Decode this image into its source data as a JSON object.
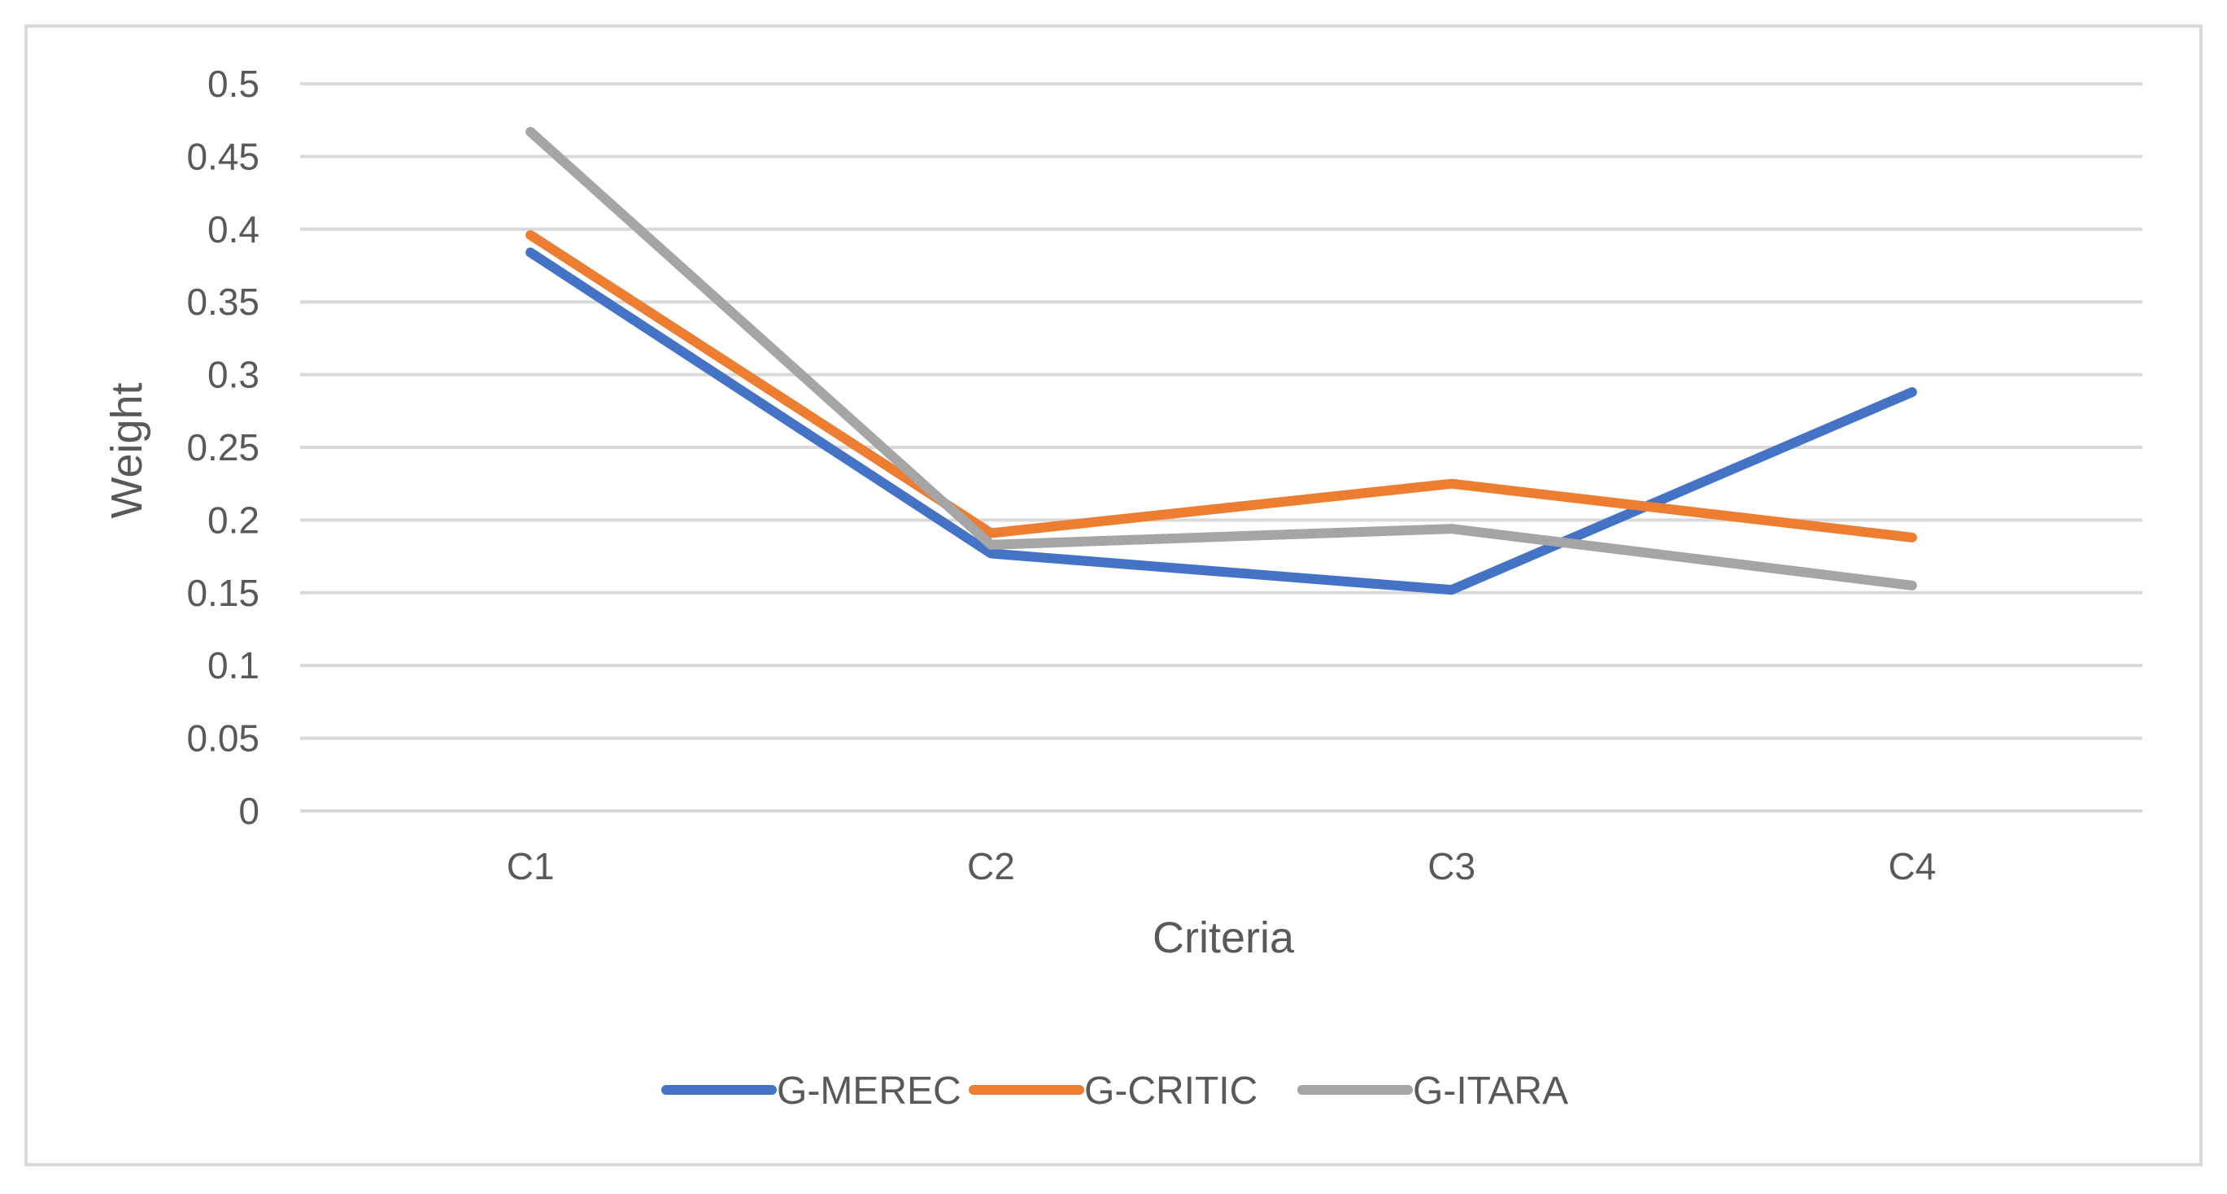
{
  "chart_data": {
    "type": "line",
    "title": "",
    "xlabel": "Criteria",
    "ylabel": "Weight",
    "categories": [
      "C1",
      "C2",
      "C3",
      "C4"
    ],
    "ylim": [
      0,
      0.5
    ],
    "yticks": [
      "0",
      "0.05",
      "0.1",
      "0.15",
      "0.2",
      "0.25",
      "0.3",
      "0.35",
      "0.4",
      "0.45",
      "0.5"
    ],
    "grid": true,
    "legend_position": "bottom",
    "series": [
      {
        "name": "G-MEREC",
        "color": "#4472c4",
        "values": [
          0.384,
          0.177,
          0.152,
          0.288
        ]
      },
      {
        "name": "G-CRITIC",
        "color": "#ed7d31",
        "values": [
          0.396,
          0.191,
          0.225,
          0.188
        ]
      },
      {
        "name": "G-ITARA",
        "color": "#a5a5a5",
        "values": [
          0.467,
          0.183,
          0.194,
          0.155
        ]
      }
    ]
  }
}
